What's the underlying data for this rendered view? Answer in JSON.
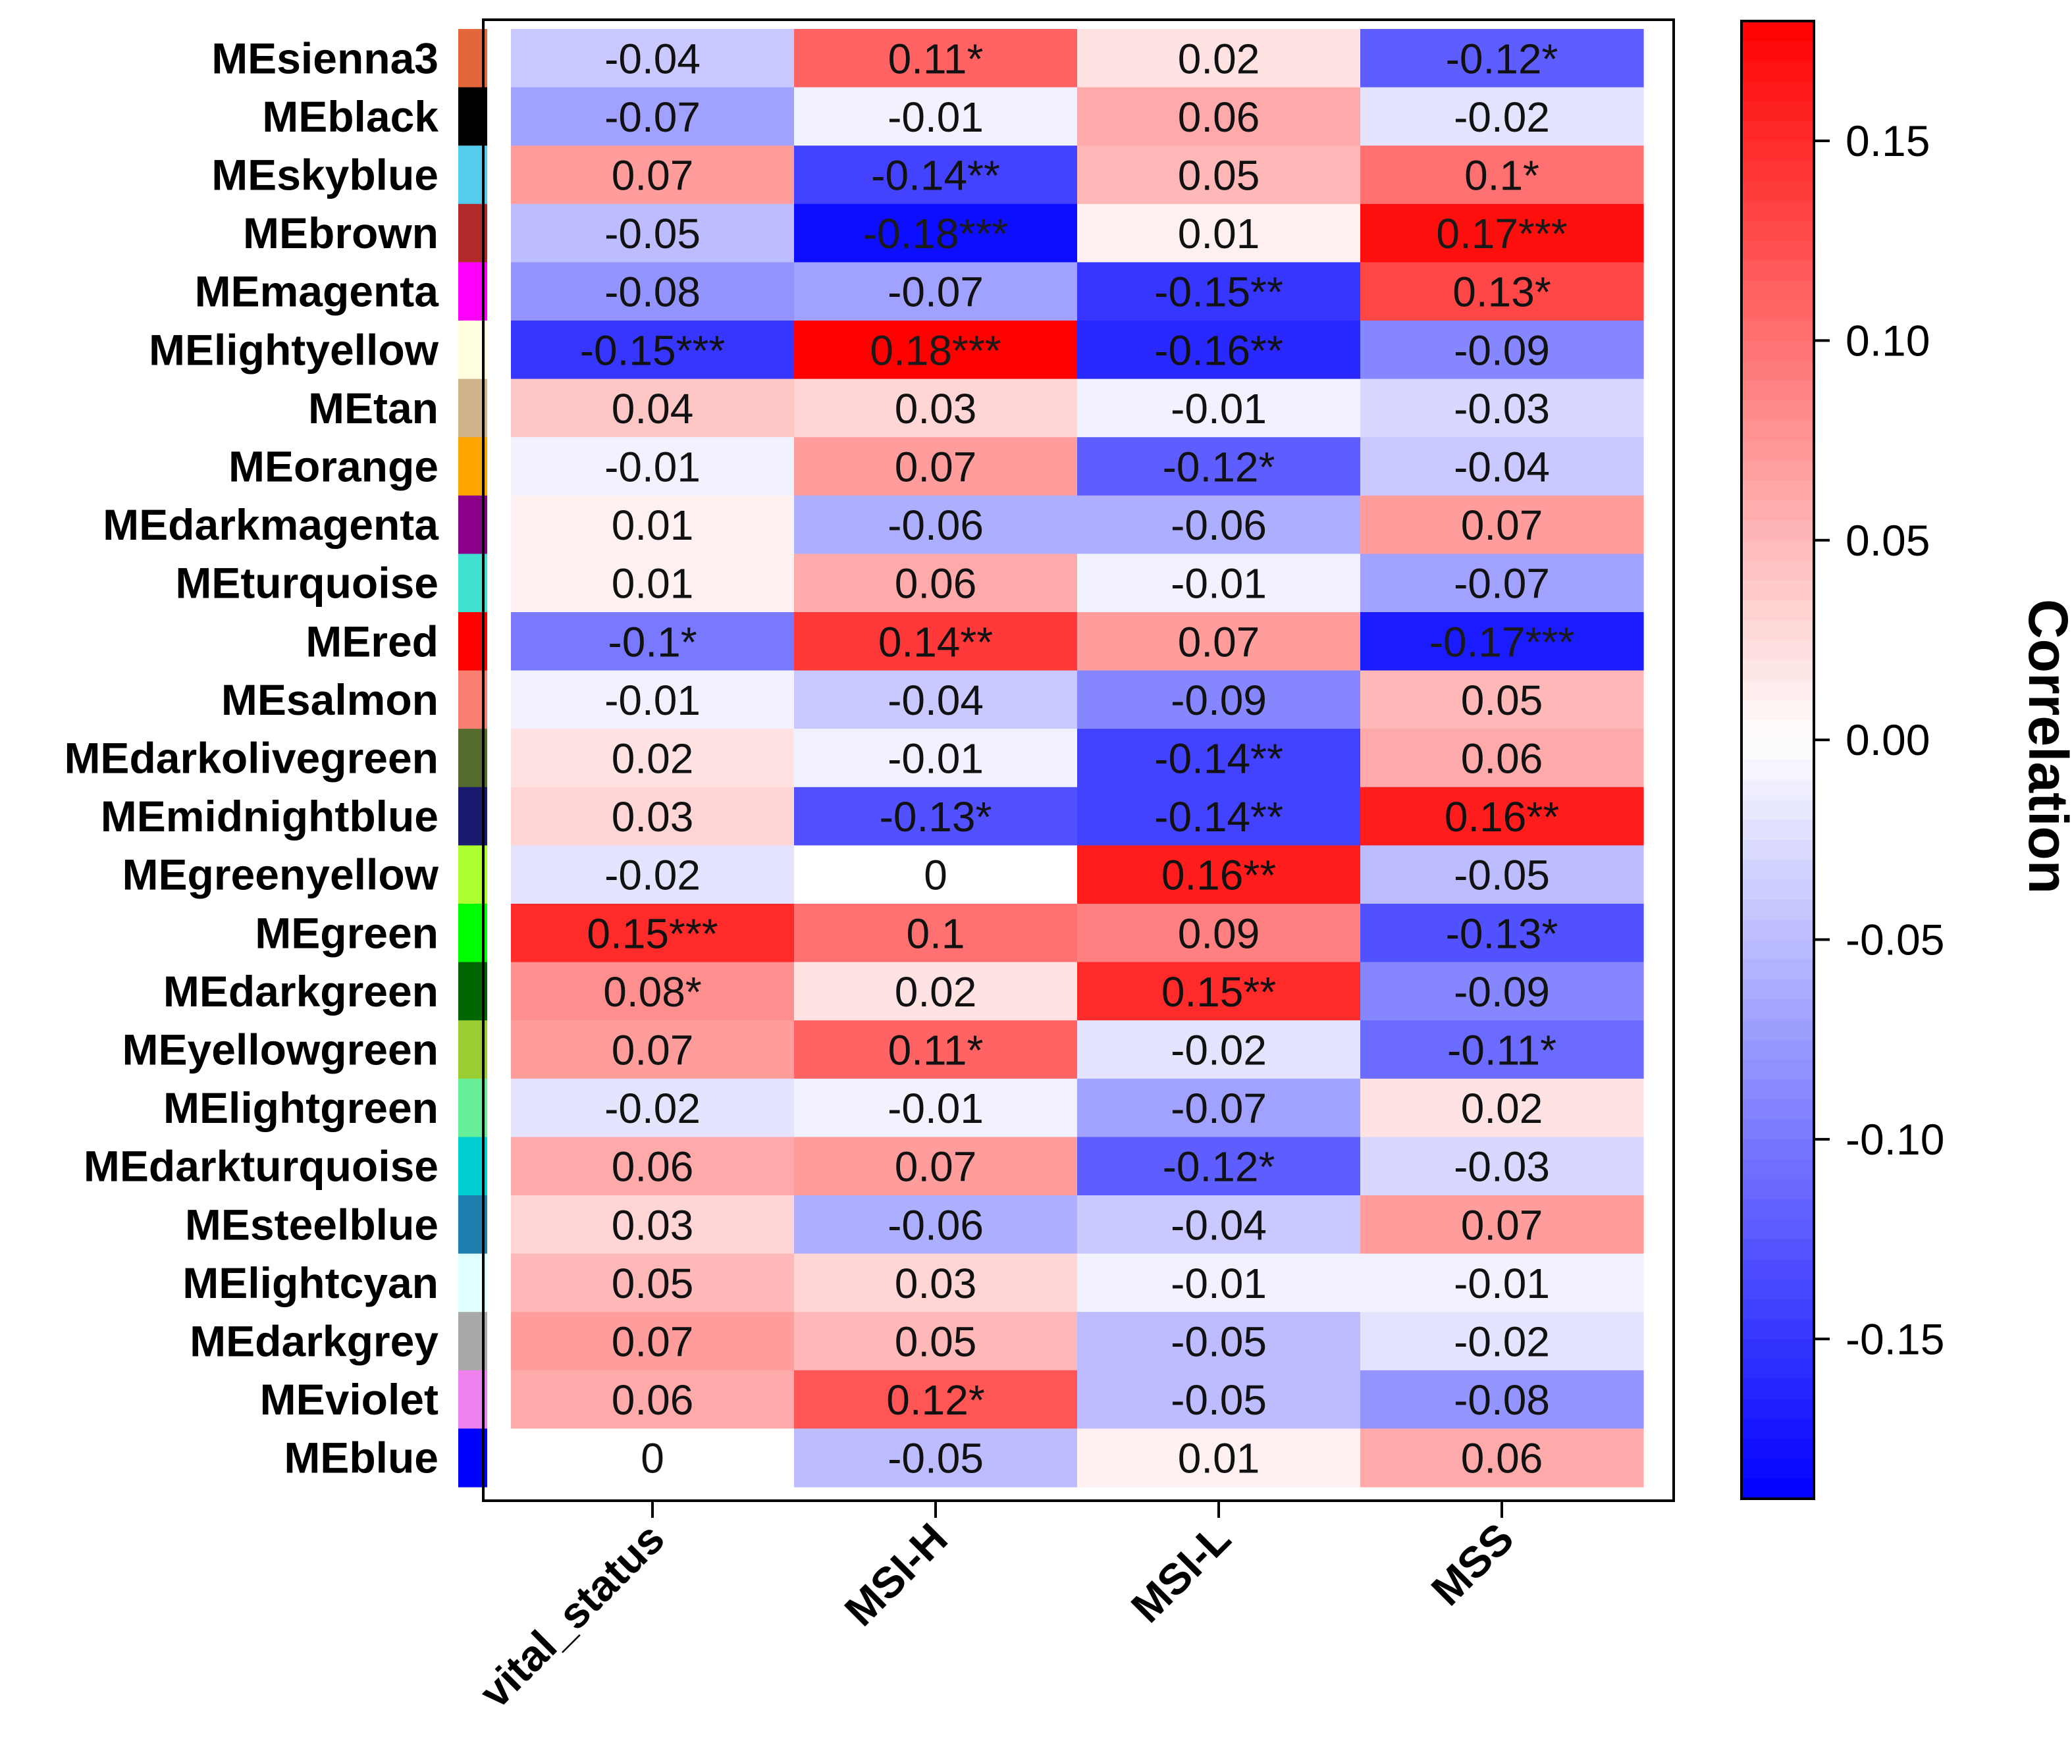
{
  "chart_data": {
    "type": "heatmap",
    "title": "",
    "columns": [
      "vital_status",
      "MSI-H",
      "MSI-L",
      "MSS"
    ],
    "rows": [
      {
        "name": "MEsienna3",
        "color": "#E3673A",
        "values": [
          -0.04,
          0.11,
          0.02,
          -0.12
        ],
        "labels": [
          "-0.04",
          "0.11*",
          "0.02",
          "-0.12*"
        ]
      },
      {
        "name": "MEblack",
        "color": "#000000",
        "values": [
          -0.07,
          -0.01,
          0.06,
          -0.02
        ],
        "labels": [
          "-0.07",
          "-0.01",
          "0.06",
          "-0.02"
        ]
      },
      {
        "name": "MEskyblue",
        "color": "#55CCEE",
        "values": [
          0.07,
          -0.14,
          0.05,
          0.1
        ],
        "labels": [
          "0.07",
          "-0.14**",
          "0.05",
          "0.1*"
        ]
      },
      {
        "name": "MEbrown",
        "color": "#B22A2A",
        "values": [
          -0.05,
          -0.18,
          0.01,
          0.17
        ],
        "labels": [
          "-0.05",
          "-0.18***",
          "0.01",
          "0.17***"
        ]
      },
      {
        "name": "MEmagenta",
        "color": "#FF00FF",
        "values": [
          -0.08,
          -0.07,
          -0.15,
          0.13
        ],
        "labels": [
          "-0.08",
          "-0.07",
          "-0.15**",
          "0.13*"
        ]
      },
      {
        "name": "MElightyellow",
        "color": "#FFFFE0",
        "values": [
          -0.15,
          0.18,
          -0.16,
          -0.09
        ],
        "labels": [
          "-0.15***",
          "0.18***",
          "-0.16**",
          "-0.09"
        ]
      },
      {
        "name": "MEtan",
        "color": "#D2B48C",
        "values": [
          0.04,
          0.03,
          -0.01,
          -0.03
        ],
        "labels": [
          "0.04",
          "0.03",
          "-0.01",
          "-0.03"
        ]
      },
      {
        "name": "MEorange",
        "color": "#FFA500",
        "values": [
          -0.01,
          0.07,
          -0.12,
          -0.04
        ],
        "labels": [
          "-0.01",
          "0.07",
          "-0.12*",
          "-0.04"
        ]
      },
      {
        "name": "MEdarkmagenta",
        "color": "#8B008B",
        "values": [
          0.01,
          -0.06,
          -0.06,
          0.07
        ],
        "labels": [
          "0.01",
          "-0.06",
          "-0.06",
          "0.07"
        ]
      },
      {
        "name": "MEturquoise",
        "color": "#40E0D0",
        "values": [
          0.01,
          0.06,
          -0.01,
          -0.07
        ],
        "labels": [
          "0.01",
          "0.06",
          "-0.01",
          "-0.07"
        ]
      },
      {
        "name": "MEred",
        "color": "#FF0000",
        "values": [
          -0.1,
          0.14,
          0.07,
          -0.17
        ],
        "labels": [
          "-0.1*",
          "0.14**",
          "0.07",
          "-0.17***"
        ]
      },
      {
        "name": "MEsalmon",
        "color": "#FA8072",
        "values": [
          -0.01,
          -0.04,
          -0.09,
          0.05
        ],
        "labels": [
          "-0.01",
          "-0.04",
          "-0.09",
          "0.05"
        ]
      },
      {
        "name": "MEdarkolivegreen",
        "color": "#556B2F",
        "values": [
          0.02,
          -0.01,
          -0.14,
          0.06
        ],
        "labels": [
          "0.02",
          "-0.01",
          "-0.14**",
          "0.06"
        ]
      },
      {
        "name": "MEmidnightblue",
        "color": "#191970",
        "values": [
          0.03,
          -0.13,
          -0.14,
          0.16
        ],
        "labels": [
          "0.03",
          "-0.13*",
          "-0.14**",
          "0.16**"
        ]
      },
      {
        "name": "MEgreenyellow",
        "color": "#ADFF2F",
        "values": [
          -0.02,
          0,
          0.16,
          -0.05
        ],
        "labels": [
          "-0.02",
          "0",
          "0.16**",
          "-0.05"
        ]
      },
      {
        "name": "MEgreen",
        "color": "#00FF00",
        "values": [
          0.15,
          0.1,
          0.09,
          -0.13
        ],
        "labels": [
          "0.15***",
          "0.1",
          "0.09",
          "-0.13*"
        ]
      },
      {
        "name": "MEdarkgreen",
        "color": "#006400",
        "values": [
          0.08,
          0.02,
          0.15,
          -0.09
        ],
        "labels": [
          "0.08*",
          "0.02",
          "0.15**",
          "-0.09"
        ]
      },
      {
        "name": "MEyellowgreen",
        "color": "#9ACD32",
        "values": [
          0.07,
          0.11,
          -0.02,
          -0.11
        ],
        "labels": [
          "0.07",
          "0.11*",
          "-0.02",
          "-0.11*"
        ]
      },
      {
        "name": "MElightgreen",
        "color": "#66EE99",
        "values": [
          -0.02,
          -0.01,
          -0.07,
          0.02
        ],
        "labels": [
          "-0.02",
          "-0.01",
          "-0.07",
          "0.02"
        ]
      },
      {
        "name": "MEdarkturquoise",
        "color": "#00CED1",
        "values": [
          0.06,
          0.07,
          -0.12,
          -0.03
        ],
        "labels": [
          "0.06",
          "0.07",
          "-0.12*",
          "-0.03"
        ]
      },
      {
        "name": "MEsteelblue",
        "color": "#1E7FAF",
        "values": [
          0.03,
          -0.06,
          -0.04,
          0.07
        ],
        "labels": [
          "0.03",
          "-0.06",
          "-0.04",
          "0.07"
        ]
      },
      {
        "name": "MElightcyan",
        "color": "#E0FFFF",
        "values": [
          0.05,
          0.03,
          -0.01,
          -0.01
        ],
        "labels": [
          "0.05",
          "0.03",
          "-0.01",
          "-0.01"
        ]
      },
      {
        "name": "MEdarkgrey",
        "color": "#A9A9A9",
        "values": [
          0.07,
          0.05,
          -0.05,
          -0.02
        ],
        "labels": [
          "0.07",
          "0.05",
          "-0.05",
          "-0.02"
        ]
      },
      {
        "name": "MEviolet",
        "color": "#EE82EE",
        "values": [
          0.06,
          0.12,
          -0.05,
          -0.08
        ],
        "labels": [
          "0.06",
          "0.12*",
          "-0.05",
          "-0.08"
        ]
      },
      {
        "name": "MEblue",
        "color": "#0000FF",
        "values": [
          0,
          -0.05,
          0.01,
          0.06
        ],
        "labels": [
          "0",
          "-0.05",
          "0.01",
          "0.06"
        ]
      }
    ],
    "colorbar": {
      "label": "Correlation",
      "range": [
        -0.19,
        0.18
      ],
      "ticks": [
        0.15,
        0.1,
        0.05,
        0.0,
        -0.05,
        -0.1,
        -0.15
      ],
      "tick_labels": [
        "0.15",
        "0.10",
        "0.05",
        "0.00",
        "-0.05",
        "-0.10",
        "-0.15"
      ],
      "low_color": "#0000FF",
      "mid_color": "#FFFFFF",
      "high_color": "#FF0000"
    }
  }
}
